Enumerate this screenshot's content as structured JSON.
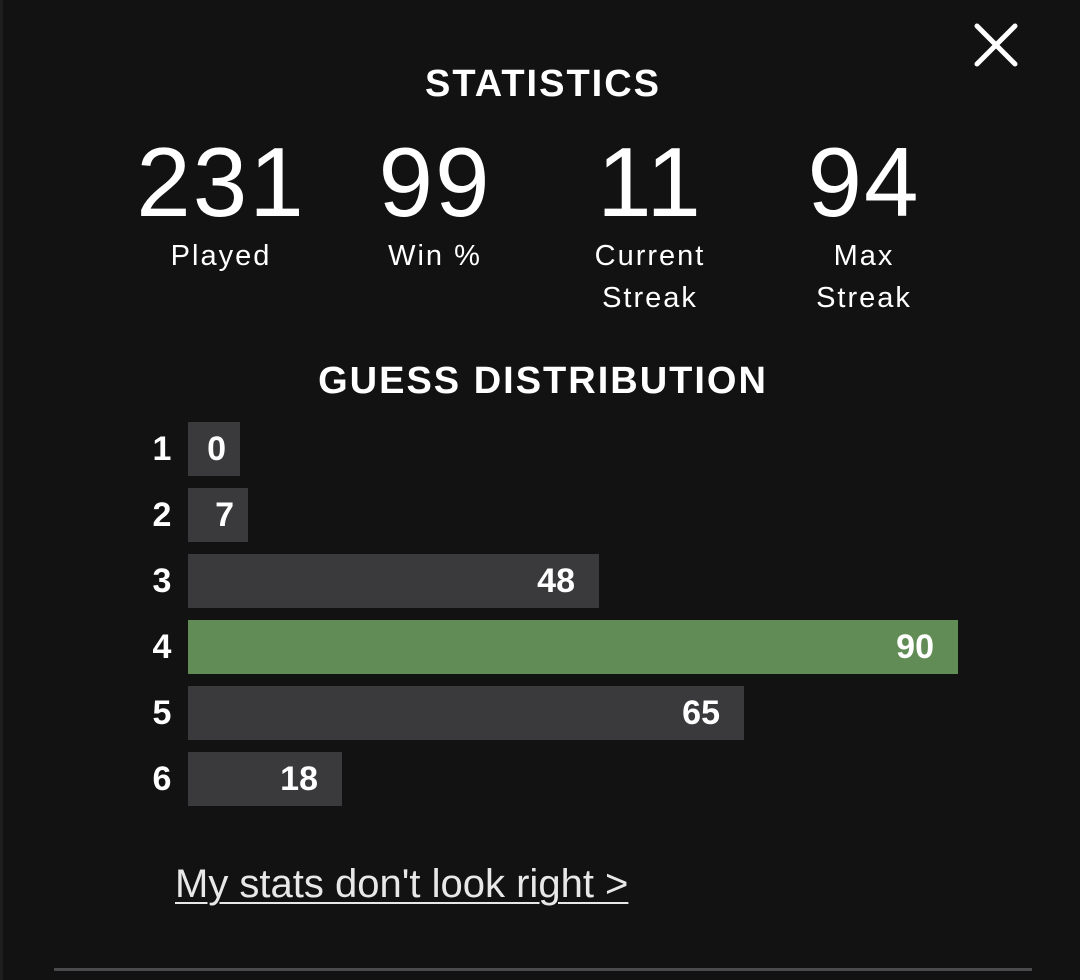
{
  "title": "STATISTICS",
  "stats": [
    {
      "value": "231",
      "label": "Played"
    },
    {
      "value": "99",
      "label": "Win %"
    },
    {
      "value": "11",
      "label": "Current Streak"
    },
    {
      "value": "94",
      "label": "Max Streak"
    }
  ],
  "distribution_title": "GUESS DISTRIBUTION",
  "distribution": [
    {
      "guess": "1",
      "count": 0
    },
    {
      "guess": "2",
      "count": 7
    },
    {
      "guess": "3",
      "count": 48
    },
    {
      "guess": "4",
      "count": 90
    },
    {
      "guess": "5",
      "count": 65
    },
    {
      "guess": "6",
      "count": 18
    }
  ],
  "highlighted_guess": "4",
  "link_text": "My stats don't look right >",
  "icons": {
    "close": "close-icon"
  },
  "colors": {
    "background": "#121213",
    "bar": "#3a3a3c",
    "highlight": "#618c55",
    "text": "#ffffff"
  }
}
